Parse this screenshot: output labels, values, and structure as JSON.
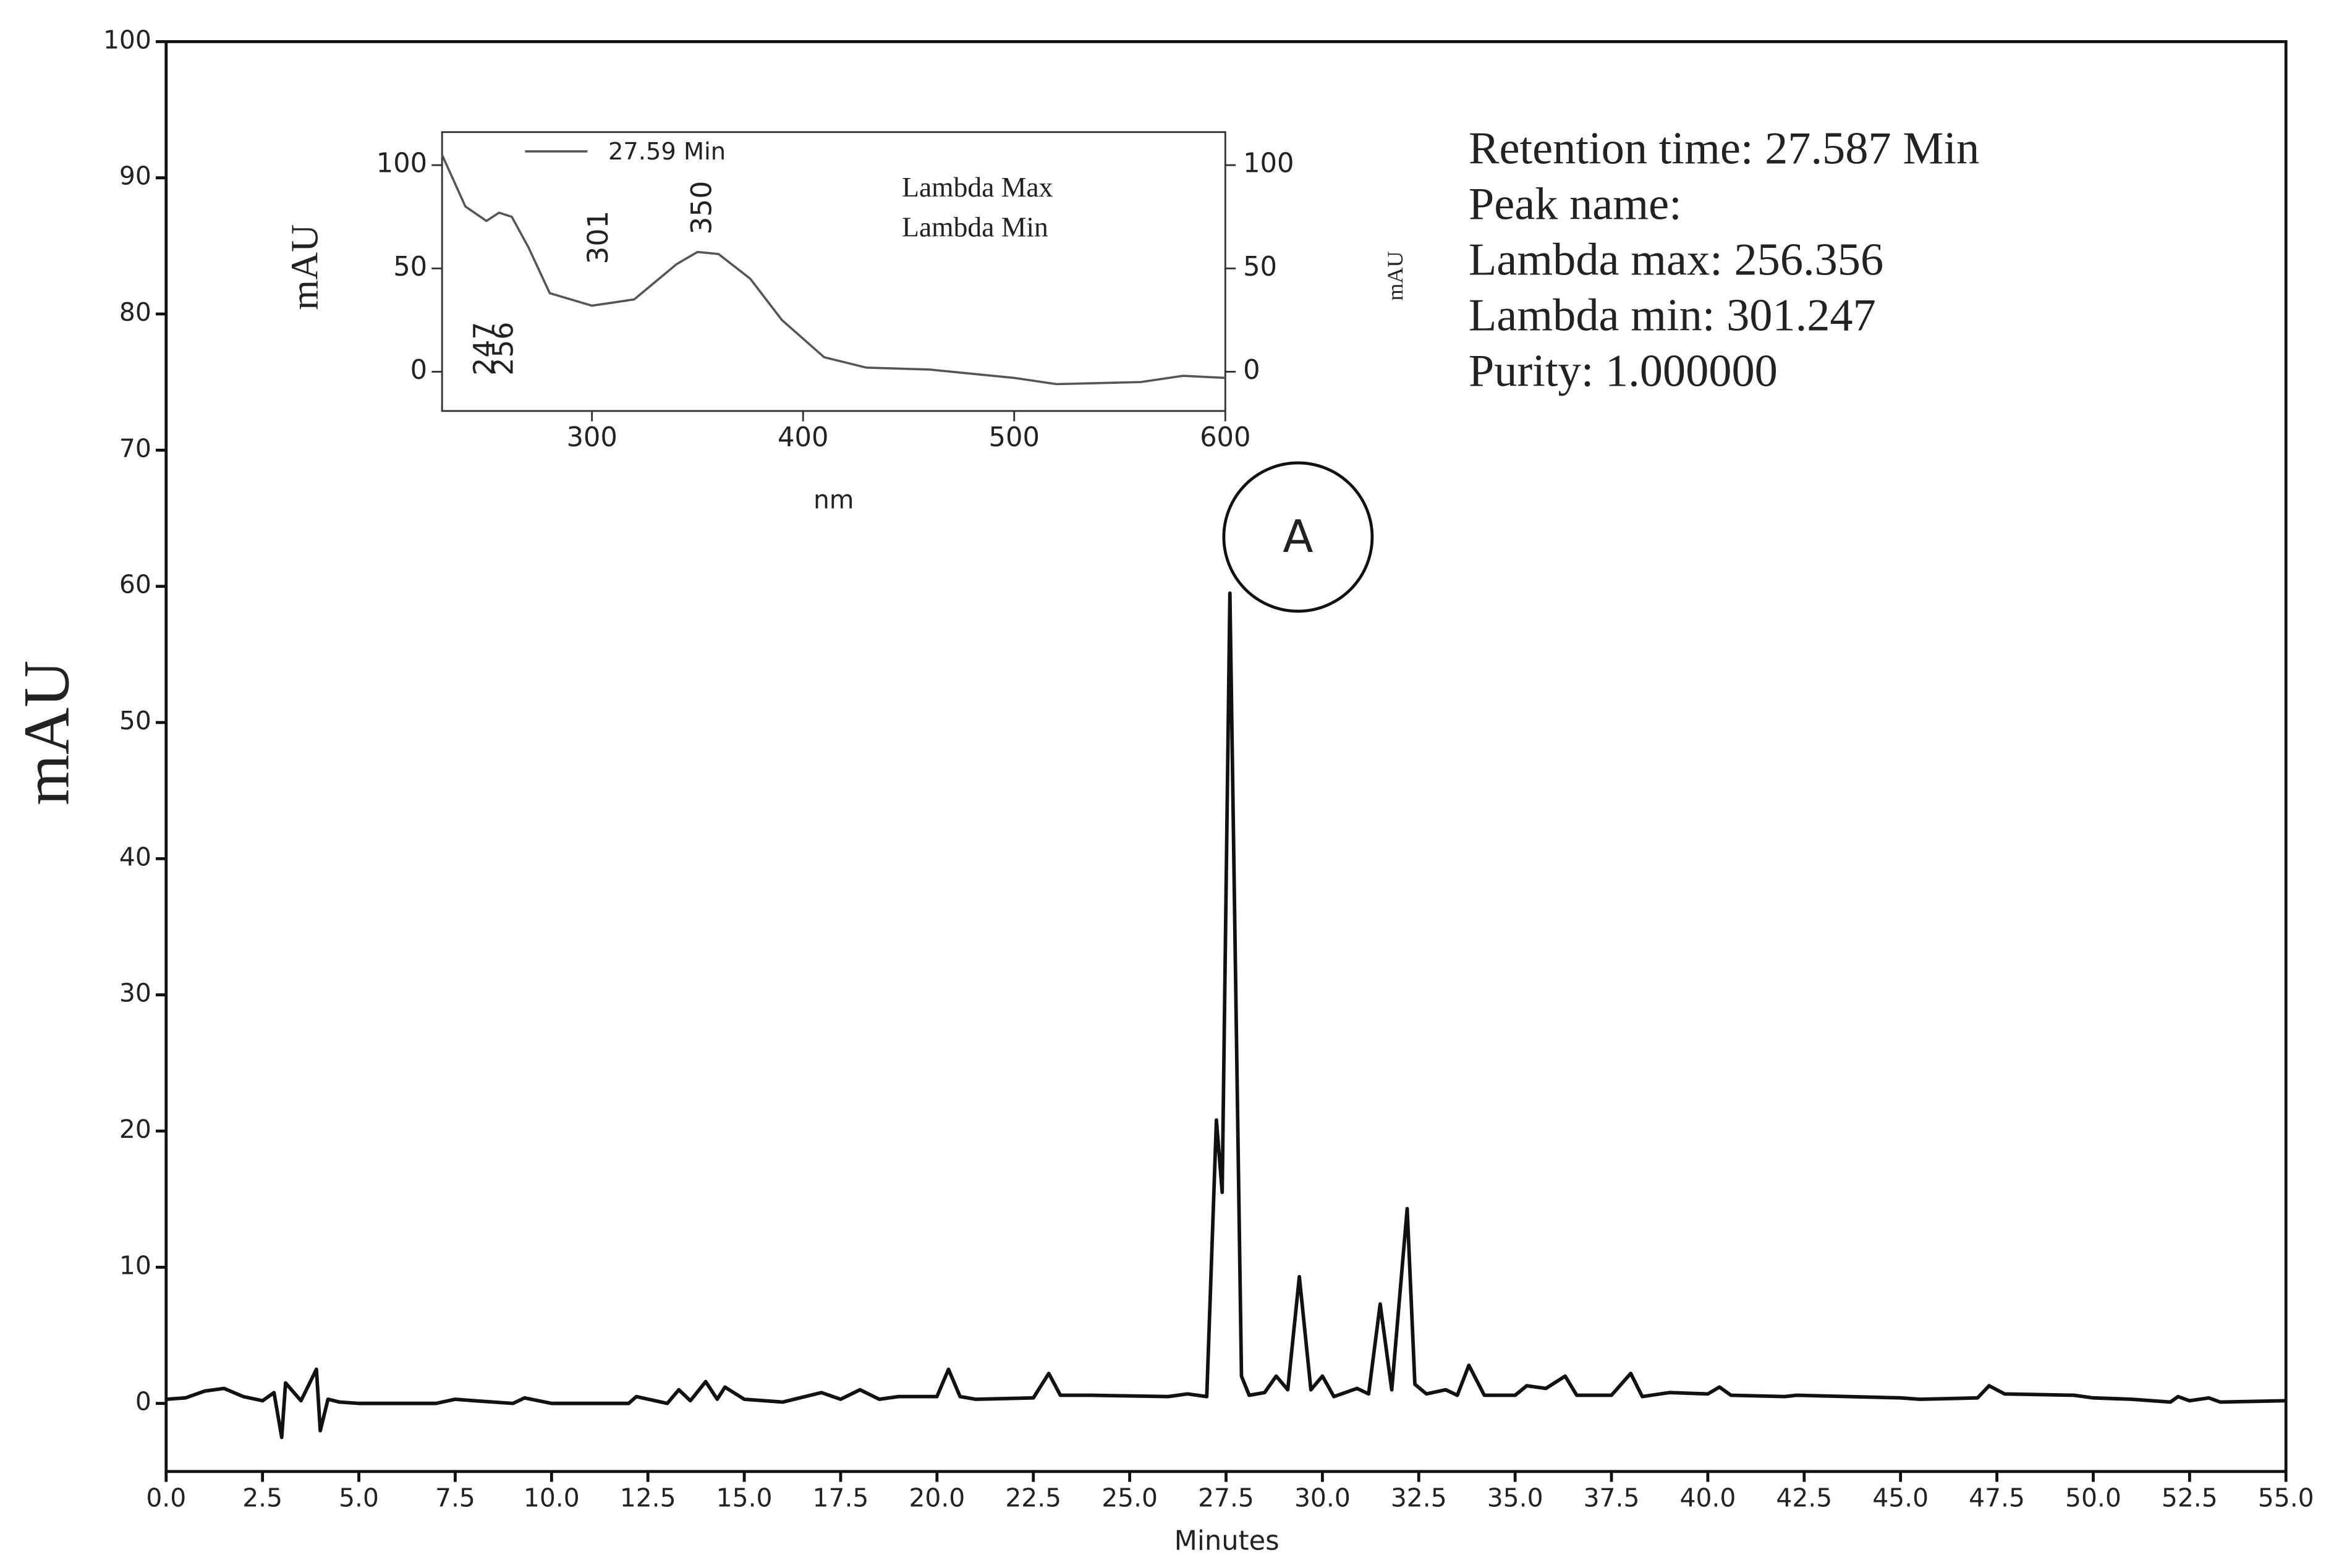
{
  "chart_data": [
    {
      "type": "line",
      "x_label": "Minutes",
      "y_label": "mAU",
      "xlim": [
        0,
        55
      ],
      "ylim": [
        -5,
        100
      ],
      "xticks": [
        {
          "value": 0,
          "label": "0.0"
        },
        2.5,
        {
          "value": 5,
          "label": "5.0"
        },
        7.5,
        {
          "value": 10,
          "label": "10.0"
        },
        12.5,
        {
          "value": 15,
          "label": "15.0"
        },
        17.5,
        {
          "value": 20,
          "label": "20.0"
        },
        22.5,
        {
          "value": 25,
          "label": "25.0"
        },
        27.5,
        {
          "value": 30,
          "label": "30.0"
        },
        32.5,
        {
          "value": 35,
          "label": "35.0"
        },
        37.5,
        {
          "value": 40,
          "label": "40.0"
        },
        42.5,
        {
          "value": 45,
          "label": "45.0"
        },
        47.5,
        {
          "value": 50,
          "label": "50.0"
        },
        52.5,
        {
          "value": 55,
          "label": "55.0"
        }
      ],
      "yticks": [
        0,
        10,
        20,
        30,
        40,
        50,
        60,
        70,
        80,
        90,
        100
      ],
      "series": [
        {
          "color": "#111111",
          "x": [
            0,
            0.5,
            1,
            1.5,
            2,
            2.5,
            2.8,
            3,
            3.1,
            3.5,
            3.9,
            4.0,
            4.2,
            4.5,
            5,
            7,
            7.5,
            8,
            9,
            9.3,
            10,
            12,
            12.2,
            13,
            13.3,
            13.6,
            14,
            14.3,
            14.5,
            15,
            16,
            17,
            17.5,
            18,
            18.5,
            19,
            20,
            20.3,
            20.6,
            21,
            22.5,
            22.9,
            23.2,
            24,
            26,
            26.5,
            27,
            27.25,
            27.4,
            27.6,
            27.9,
            28.1,
            28.5,
            28.8,
            29.1,
            29.4,
            29.7,
            30,
            30.3,
            30.9,
            31.2,
            31.5,
            31.8,
            32.2,
            32.4,
            32.7,
            33.2,
            33.5,
            33.8,
            34.2,
            35,
            35.3,
            35.8,
            36.3,
            36.6,
            37.5,
            38,
            38.3,
            39,
            40,
            40.3,
            40.6,
            42,
            42.3,
            45,
            45.5,
            47,
            47.3,
            47.7,
            49.5,
            50,
            51,
            52,
            52.2,
            52.5,
            53,
            53.3,
            55
          ],
          "values": [
            0.3,
            0.4,
            0.9,
            1.1,
            0.5,
            0.2,
            0.8,
            -2.5,
            1.5,
            0.2,
            2.5,
            -2,
            0.3,
            0.1,
            0,
            0,
            0.3,
            0.2,
            0,
            0.4,
            0,
            0,
            0.5,
            0,
            1,
            0.2,
            1.6,
            0.3,
            1.2,
            0.3,
            0.1,
            0.8,
            0.3,
            1,
            0.3,
            0.5,
            0.5,
            2.5,
            0.5,
            0.3,
            0.4,
            2.2,
            0.6,
            0.6,
            0.5,
            0.7,
            0.5,
            20.8,
            15.5,
            59.5,
            2,
            0.6,
            0.8,
            2,
            1,
            9.3,
            1,
            2,
            0.5,
            1.1,
            0.7,
            7.3,
            1,
            14.3,
            1.4,
            0.7,
            1,
            0.6,
            2.8,
            0.6,
            0.6,
            1.3,
            1.1,
            2,
            0.6,
            0.6,
            2.2,
            0.5,
            0.8,
            0.7,
            1.2,
            0.6,
            0.5,
            0.6,
            0.4,
            0.3,
            0.4,
            1.3,
            0.7,
            0.6,
            0.4,
            0.3,
            0.1,
            0.5,
            0.2,
            0.4,
            0.1,
            0.2
          ]
        }
      ],
      "peak_marker": "A"
    },
    {
      "type": "line",
      "x_label": "nm",
      "y_label": "mAU",
      "y2_label": "mAU",
      "xlim": [
        229,
        600
      ],
      "ylim": [
        -19,
        116
      ],
      "y2lim": [
        -19,
        116
      ],
      "xticks": [
        300,
        400,
        500,
        600
      ],
      "yticks": [
        0,
        50,
        100
      ],
      "y2ticks": [
        0,
        50,
        100
      ],
      "series": [
        {
          "name": "27.59 Min",
          "color": "#555555",
          "x": [
            229,
            240,
            250,
            256,
            262,
            270,
            280,
            300,
            320,
            340,
            350,
            360,
            375,
            390,
            410,
            430,
            460,
            500,
            520,
            560,
            580,
            600
          ],
          "values": [
            105,
            80,
            73,
            77,
            75,
            60,
            38,
            32,
            35,
            52,
            58,
            57,
            45,
            25,
            7,
            2,
            1,
            -3,
            -6,
            -5,
            -2,
            -3
          ]
        }
      ],
      "peak_labels": [
        {
          "value": 247,
          "color": "#bbbbbb"
        },
        {
          "value": 256,
          "color": "#888888"
        },
        {
          "value": 301,
          "color": "#bbbbbb"
        },
        {
          "value": 350,
          "color": "#888888"
        }
      ],
      "annotations": [
        {
          "text": "Lambda Max",
          "color": "#888888"
        },
        {
          "text": "Lambda Min",
          "color": "#bbbbbb"
        }
      ]
    }
  ],
  "info": [
    "Retention time: 27.587 Min",
    "Peak name:",
    "Lambda max: 256.356",
    "Lambda min: 301.247",
    "Purity: 1.000000"
  ]
}
